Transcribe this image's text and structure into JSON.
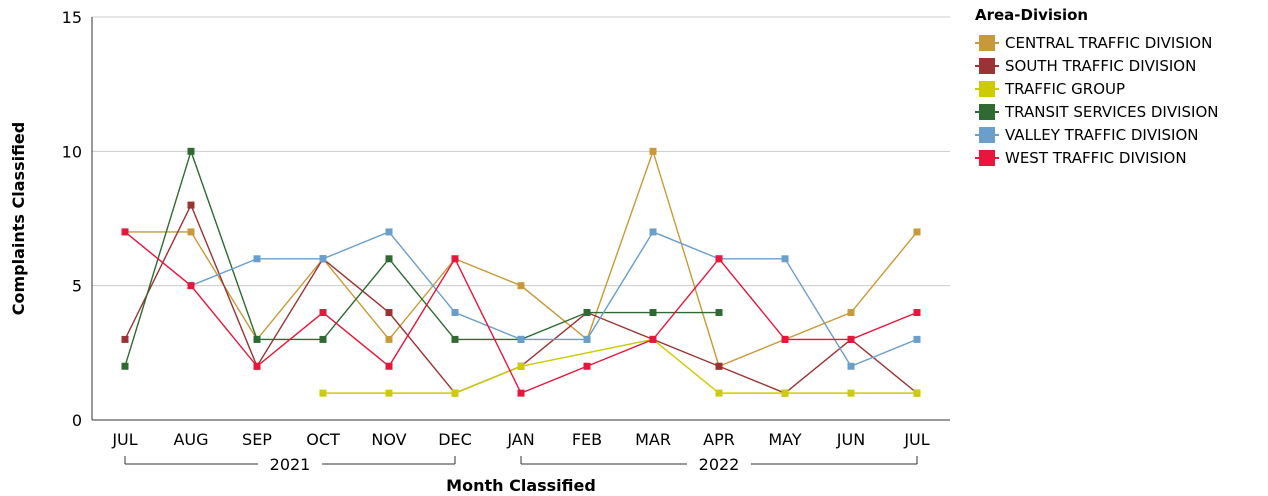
{
  "chart_data": {
    "type": "line",
    "xlabel": "Month Classified",
    "ylabel": "Complaints Classified",
    "ylim": [
      0,
      15
    ],
    "yticks": [
      0,
      5,
      10,
      15
    ],
    "categories": [
      "JUL",
      "AUG",
      "SEP",
      "OCT",
      "NOV",
      "DEC",
      "JAN",
      "FEB",
      "MAR",
      "APR",
      "MAY",
      "JUN",
      "JUL"
    ],
    "year_groups": [
      {
        "label": "2021",
        "start": 0,
        "end": 5
      },
      {
        "label": "2022",
        "start": 6,
        "end": 12
      }
    ],
    "grid": "horizontal",
    "legend_title": "Area-Division",
    "legend_position": "top-right",
    "series": [
      {
        "name": "CENTRAL TRAFFIC DIVISION",
        "color": "#c8993a",
        "values": [
          7,
          7,
          3,
          6,
          3,
          6,
          5,
          3,
          10,
          2,
          3,
          4,
          7
        ]
      },
      {
        "name": "SOUTH TRAFFIC DIVISION",
        "color": "#9a3333",
        "values": [
          3,
          8,
          2,
          6,
          4,
          1,
          2,
          4,
          3,
          2,
          1,
          3,
          1
        ]
      },
      {
        "name": "TRAFFIC GROUP",
        "color": "#cccc00",
        "values": [
          null,
          null,
          null,
          1,
          1,
          1,
          2,
          null,
          3,
          1,
          1,
          1,
          1
        ]
      },
      {
        "name": "TRANSIT SERVICES DIVISION",
        "color": "#2f6a32",
        "values": [
          2,
          10,
          3,
          3,
          6,
          3,
          3,
          4,
          4,
          4,
          null,
          null,
          null
        ]
      },
      {
        "name": "VALLEY TRAFFIC DIVISION",
        "color": "#6a9ecb",
        "values": [
          null,
          5,
          6,
          6,
          7,
          4,
          3,
          3,
          7,
          6,
          6,
          2,
          3
        ]
      },
      {
        "name": "WEST TRAFFIC DIVISION",
        "color": "#e8153c",
        "values": [
          7,
          5,
          2,
          4,
          2,
          6,
          1,
          2,
          3,
          6,
          3,
          3,
          4
        ]
      }
    ]
  }
}
